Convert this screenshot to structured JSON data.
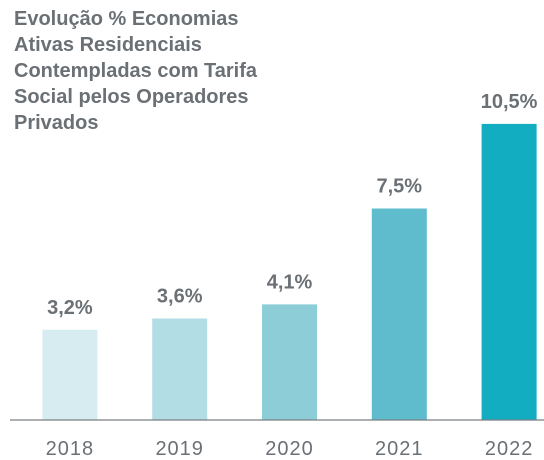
{
  "chart_data": {
    "type": "bar",
    "title": "Evolução % Economias Ativas Residenciais Contempladas com Tarifa Social pelos Operadores Privados",
    "categories": [
      "2018",
      "2019",
      "2020",
      "2021",
      "2022"
    ],
    "values": [
      3.2,
      3.6,
      4.1,
      7.5,
      10.5
    ],
    "value_labels": [
      "3,2%",
      "3,6%",
      "4,1%",
      "7,5%",
      "10,5%"
    ],
    "colors": [
      "#d6ecf0",
      "#b3dde5",
      "#8dcdd8",
      "#5ebccc",
      "#12adc1"
    ]
  }
}
